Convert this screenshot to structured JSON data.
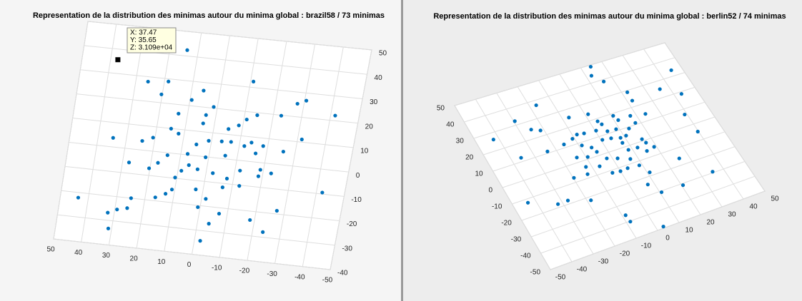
{
  "chart_data": [
    {
      "type": "scatter",
      "title": "Representation de la distribution des minimas autour du minima global : brazil58 / 73 minimas",
      "color": "#0072bd",
      "grid": true,
      "xlim": [
        -50,
        50
      ],
      "ylim": [
        -40,
        50
      ],
      "xticks": [
        50,
        40,
        30,
        20,
        10,
        0,
        -10,
        -20,
        -30,
        -40,
        -50
      ],
      "yticks": [
        50,
        40,
        30,
        20,
        10,
        0,
        -10,
        -20,
        -30,
        -40
      ],
      "x": [
        13.9,
        25.7,
        18.6,
        20.3,
        5.8,
        9.4,
        -11,
        1.3,
        13.2,
        3.5,
        4,
        -11,
        -14.4,
        -22.8,
        -27.7,
        -30.6,
        -41.6,
        34.7,
        14.9,
        12,
        20.7,
        24.3,
        1,
        5.1,
        -5.2,
        -8.6,
        -3.6,
        -6.9,
        -11.8,
        -14.1,
        -18.4,
        -16.2,
        -25.8,
        -31.5,
        7.6,
        1.1,
        -5.7,
        17.5,
        14.6,
        27.7,
        20.3,
        6.5,
        8.8,
        3.2,
        -2.4,
        -11.8,
        -18.9,
        -22.9,
        -18.6,
        10.6,
        -7.7,
        -12.5,
        -6.7,
        11,
        2.6,
        -42.1,
        43.6,
        24.9,
        16.4,
        13,
        -1.5,
        25.7,
        29.2,
        32.3,
        0.8,
        -7.1,
        -27.3,
        -18.4,
        -4.1,
        -23.7,
        31.2,
        -2.1,
        37.47
      ],
      "values": [
        42.4,
        28.0,
        28.9,
        23.4,
        26.7,
        22.4,
        32.4,
        20.5,
        16.3,
        16.9,
        13.4,
        16.8,
        19.0,
        19.8,
        25.3,
        26.9,
        22.1,
        3.7,
        9.9,
        8.2,
        5.5,
        3.7,
        6.6,
        4.6,
        12.2,
        14.1,
        6.9,
        7.1,
        6.0,
        7.7,
        6.8,
        3.5,
        5.4,
        11.1,
        0.4,
        -0.2,
        1.3,
        -4.5,
        -1.0,
        -5.6,
        -7.1,
        -4.1,
        -6.7,
        -5.4,
        -6.3,
        -4.1,
        -2.9,
        -3.9,
        -5.6,
        -9.7,
        -7.9,
        -10.3,
        -11.6,
        -14.7,
        -13.6,
        -9.4,
        -22.1,
        -20.0,
        -18.6,
        -16.7,
        -17.0,
        -24.2,
        -25.2,
        -26.9,
        -20.7,
        -22.4,
        -18.7,
        -23.6,
        -26.9,
        -27.9,
        -33.3,
        -34.2,
        35.65
      ],
      "datatip": {
        "x": 37.47,
        "y": 35.65,
        "labels": [
          "X: 37.47",
          "Y: 35.65",
          "Z: 3.109e+04"
        ]
      }
    },
    {
      "type": "scatter",
      "title": "Representation de la distribution des minimas autour du minima global : berlin52 / 74 minimas",
      "color": "#0072bd",
      "grid": true,
      "xlim": [
        -50,
        50
      ],
      "ylim": [
        -50,
        50
      ],
      "xticks": [
        -50,
        -40,
        -30,
        -20,
        -10,
        0,
        10,
        20,
        30,
        40,
        50
      ],
      "yticks": [
        50,
        40,
        30,
        20,
        10,
        0,
        -10,
        -20,
        -30,
        -40,
        -50
      ],
      "x": [
        14.3,
        12.3,
        15.7,
        45.3,
        35.9,
        22.3,
        43.1,
        22.1,
        -17.1,
        -29.5,
        -25,
        -21.5,
        -42.4,
        -35.7,
        -23.8,
        -43.5,
        -27.4,
        -32.1,
        -18.4,
        -7.1,
        1.3,
        -8.1,
        3.3,
        4.2,
        10.8,
        11.7,
        17.5,
        23.9,
        17.7,
        13.8,
        10.9,
        8.6,
        4.7,
        0.4,
        -5,
        -10.9,
        -15.6,
        -8.8,
        -5.5,
        0.6,
        4.4,
        8.2,
        7.7,
        16.2,
        16.9,
        12.4,
        15.2,
        19,
        8.3,
        6.8,
        2,
        -2.2,
        -4.5,
        -9.3,
        -13.7,
        -12.4,
        -13.5,
        -6.9,
        -3.5,
        0,
        3.5,
        8.7,
        11,
        7.3,
        10.7,
        39,
        39.7,
        25.8,
        35.2,
        20.6,
        -8.6,
        -8.3,
        3.1,
        -19.7
      ],
      "values": [
        49,
        44,
        38.8,
        33.6,
        25.1,
        29,
        18.7,
        23.6,
        37.2,
        32.3,
        25.2,
        23.2,
        26.2,
        12.2,
        11,
        -12.1,
        -18,
        -18.1,
        -22,
        25.3,
        23.8,
        14.9,
        18.4,
        16.1,
        18.7,
        15.5,
        15.7,
        14.1,
        11,
        9.1,
        5.8,
        11,
        11.4,
        13.7,
        14.3,
        13.4,
        11.9,
        8.3,
        5.5,
        7.7,
        7,
        5.6,
        2.6,
        1.1,
        -1.5,
        -2.6,
        -6.1,
        -5.2,
        -2.2,
        -7.4,
        -4.8,
        -2.9,
        2.3,
        1.2,
        2.8,
        -3.7,
        -7.8,
        -5.8,
        -11.5,
        -12.1,
        -11.8,
        -12.4,
        -18,
        -24.1,
        -30.7,
        6.8,
        -4.9,
        -16,
        -29.4,
        -31,
        -36.1,
        -40.3,
        -49.1,
        -7.3
      ]
    }
  ]
}
